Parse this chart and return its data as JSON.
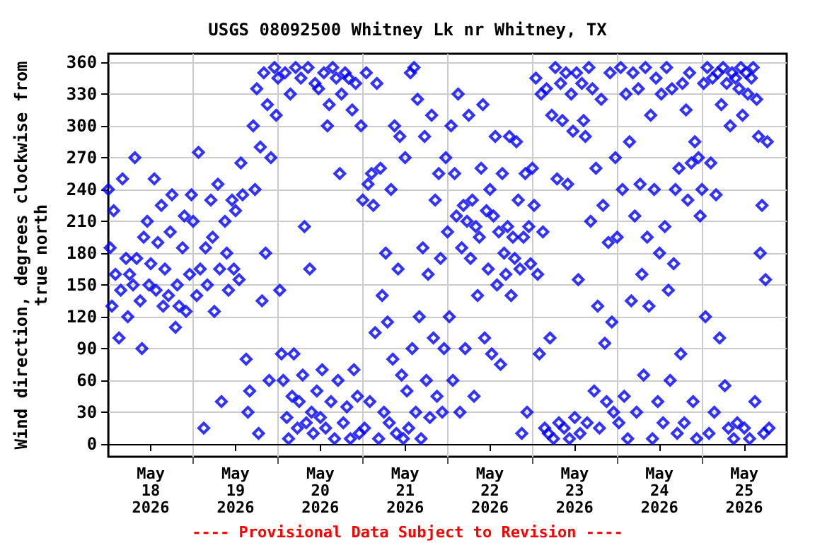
{
  "chart_data": {
    "type": "scatter",
    "title": "USGS 08092500 Whitney Lk nr Whitney, TX",
    "ylabel": "Wind direction, degrees clockwise from\ntrue north",
    "annotations": [
      "---- Provisional Data Subject to Revision ----"
    ],
    "marker": "diamond",
    "grid": true,
    "xlim": [
      "2026-05-18T00:00",
      "2026-05-26T00:00"
    ],
    "xticks": [
      {
        "value": "2026-05-18T12:00",
        "label": "May\n18\n2026"
      },
      {
        "value": "2026-05-19T12:00",
        "label": "May\n19\n2026"
      },
      {
        "value": "2026-05-20T12:00",
        "label": "May\n20\n2026"
      },
      {
        "value": "2026-05-21T12:00",
        "label": "May\n21\n2026"
      },
      {
        "value": "2026-05-22T12:00",
        "label": "May\n22\n2026"
      },
      {
        "value": "2026-05-23T12:00",
        "label": "May\n23\n2026"
      },
      {
        "value": "2026-05-24T12:00",
        "label": "May\n24\n2026"
      },
      {
        "value": "2026-05-25T12:00",
        "label": "May\n25\n2026"
      },
      {
        "value": "2026-05-19T00:00",
        "label": null
      },
      {
        "value": "2026-05-20T00:00",
        "label": null
      },
      {
        "value": "2026-05-21T00:00",
        "label": null
      },
      {
        "value": "2026-05-22T00:00",
        "label": null
      },
      {
        "value": "2026-05-23T00:00",
        "label": null
      },
      {
        "value": "2026-05-24T00:00",
        "label": null
      },
      {
        "value": "2026-05-25T00:00",
        "label": null
      }
    ],
    "ylim": [
      -12,
      368
    ],
    "yticks": [
      0,
      30,
      60,
      90,
      120,
      150,
      180,
      210,
      240,
      270,
      300,
      330,
      360
    ],
    "series": [
      {
        "color": "#0000ff",
        "x": [
          "2026-05-18T00:00",
          "2026-05-18T00:30",
          "2026-05-18T01:00",
          "2026-05-18T01:30",
          "2026-05-18T02:00",
          "2026-05-18T03:00",
          "2026-05-18T03:30",
          "2026-05-18T04:00",
          "2026-05-18T05:00",
          "2026-05-18T05:30",
          "2026-05-18T06:00",
          "2026-05-18T07:00",
          "2026-05-18T07:30",
          "2026-05-18T08:00",
          "2026-05-18T09:00",
          "2026-05-18T09:30",
          "2026-05-18T10:00",
          "2026-05-18T11:00",
          "2026-05-18T11:30",
          "2026-05-18T12:00",
          "2026-05-18T13:00",
          "2026-05-18T13:30",
          "2026-05-18T14:00",
          "2026-05-18T15:00",
          "2026-05-18T15:30",
          "2026-05-18T16:00",
          "2026-05-18T17:00",
          "2026-05-18T17:30",
          "2026-05-18T18:00",
          "2026-05-18T19:00",
          "2026-05-18T19:30",
          "2026-05-18T20:00",
          "2026-05-18T21:00",
          "2026-05-18T21:30",
          "2026-05-18T22:00",
          "2026-05-18T23:00",
          "2026-05-18T23:30",
          "2026-05-19T00:00",
          "2026-05-19T01:00",
          "2026-05-19T01:30",
          "2026-05-19T02:00",
          "2026-05-19T03:00",
          "2026-05-19T03:30",
          "2026-05-19T04:00",
          "2026-05-19T05:00",
          "2026-05-19T05:30",
          "2026-05-19T06:00",
          "2026-05-19T07:00",
          "2026-05-19T07:30",
          "2026-05-19T08:00",
          "2026-05-19T09:00",
          "2026-05-19T09:30",
          "2026-05-19T10:00",
          "2026-05-19T11:00",
          "2026-05-19T11:30",
          "2026-05-19T12:00",
          "2026-05-19T13:00",
          "2026-05-19T13:30",
          "2026-05-19T14:00",
          "2026-05-19T15:00",
          "2026-05-19T15:30",
          "2026-05-19T16:00",
          "2026-05-19T17:00",
          "2026-05-19T17:30",
          "2026-05-19T18:00",
          "2026-05-19T18:30",
          "2026-05-19T19:00",
          "2026-05-19T19:30",
          "2026-05-19T20:00",
          "2026-05-19T20:30",
          "2026-05-19T21:00",
          "2026-05-19T21:30",
          "2026-05-19T22:00",
          "2026-05-19T23:00",
          "2026-05-19T23:30",
          "2026-05-20T00:00",
          "2026-05-20T00:30",
          "2026-05-20T01:00",
          "2026-05-20T01:30",
          "2026-05-20T02:00",
          "2026-05-20T02:30",
          "2026-05-20T03:00",
          "2026-05-20T03:30",
          "2026-05-20T04:00",
          "2026-05-20T04:30",
          "2026-05-20T05:00",
          "2026-05-20T05:30",
          "2026-05-20T06:00",
          "2026-05-20T06:30",
          "2026-05-20T07:00",
          "2026-05-20T07:30",
          "2026-05-20T08:00",
          "2026-05-20T08:30",
          "2026-05-20T09:00",
          "2026-05-20T09:30",
          "2026-05-20T10:00",
          "2026-05-20T10:30",
          "2026-05-20T11:00",
          "2026-05-20T11:30",
          "2026-05-20T12:00",
          "2026-05-20T12:30",
          "2026-05-20T13:00",
          "2026-05-20T13:30",
          "2026-05-20T14:00",
          "2026-05-20T14:30",
          "2026-05-20T15:00",
          "2026-05-20T15:30",
          "2026-05-20T16:00",
          "2026-05-20T16:30",
          "2026-05-20T17:00",
          "2026-05-20T17:30",
          "2026-05-20T18:00",
          "2026-05-20T18:30",
          "2026-05-20T19:00",
          "2026-05-20T19:30",
          "2026-05-20T20:00",
          "2026-05-20T20:30",
          "2026-05-20T21:00",
          "2026-05-20T21:30",
          "2026-05-20T22:00",
          "2026-05-20T22:30",
          "2026-05-20T23:00",
          "2026-05-20T23:30",
          "2026-05-21T00:00",
          "2026-05-21T00:30",
          "2026-05-21T01:00",
          "2026-05-21T01:30",
          "2026-05-21T02:00",
          "2026-05-21T02:30",
          "2026-05-21T03:00",
          "2026-05-21T03:30",
          "2026-05-21T04:00",
          "2026-05-21T04:30",
          "2026-05-21T05:00",
          "2026-05-21T05:30",
          "2026-05-21T06:00",
          "2026-05-21T06:30",
          "2026-05-21T07:00",
          "2026-05-21T07:30",
          "2026-05-21T08:00",
          "2026-05-21T08:30",
          "2026-05-21T09:00",
          "2026-05-21T09:30",
          "2026-05-21T10:00",
          "2026-05-21T10:30",
          "2026-05-21T11:00",
          "2026-05-21T11:30",
          "2026-05-21T12:00",
          "2026-05-21T12:30",
          "2026-05-21T13:00",
          "2026-05-21T13:30",
          "2026-05-21T14:00",
          "2026-05-21T14:30",
          "2026-05-21T15:00",
          "2026-05-21T15:30",
          "2026-05-21T16:00",
          "2026-05-21T16:30",
          "2026-05-21T17:00",
          "2026-05-21T17:30",
          "2026-05-21T18:00",
          "2026-05-21T18:30",
          "2026-05-21T19:00",
          "2026-05-21T19:30",
          "2026-05-21T20:00",
          "2026-05-21T20:30",
          "2026-05-21T21:00",
          "2026-05-21T21:30",
          "2026-05-21T22:00",
          "2026-05-21T22:30",
          "2026-05-21T23:00",
          "2026-05-21T23:30",
          "2026-05-22T00:00",
          "2026-05-22T00:30",
          "2026-05-22T01:00",
          "2026-05-22T01:30",
          "2026-05-22T02:00",
          "2026-05-22T02:30",
          "2026-05-22T03:00",
          "2026-05-22T03:30",
          "2026-05-22T04:00",
          "2026-05-22T04:30",
          "2026-05-22T05:00",
          "2026-05-22T05:30",
          "2026-05-22T06:00",
          "2026-05-22T06:30",
          "2026-05-22T07:00",
          "2026-05-22T07:30",
          "2026-05-22T08:00",
          "2026-05-22T08:30",
          "2026-05-22T09:00",
          "2026-05-22T09:30",
          "2026-05-22T10:00",
          "2026-05-22T10:30",
          "2026-05-22T11:00",
          "2026-05-22T11:30",
          "2026-05-22T12:00",
          "2026-05-22T12:30",
          "2026-05-22T13:00",
          "2026-05-22T13:30",
          "2026-05-22T14:00",
          "2026-05-22T14:30",
          "2026-05-22T15:00",
          "2026-05-22T15:30",
          "2026-05-22T16:00",
          "2026-05-22T16:30",
          "2026-05-22T17:00",
          "2026-05-22T17:30",
          "2026-05-22T18:00",
          "2026-05-22T18:30",
          "2026-05-22T19:00",
          "2026-05-22T19:30",
          "2026-05-22T20:00",
          "2026-05-22T20:30",
          "2026-05-22T21:00",
          "2026-05-22T21:30",
          "2026-05-22T22:00",
          "2026-05-22T22:30",
          "2026-05-22T23:00",
          "2026-05-22T23:30",
          "2026-05-23T00:00",
          "2026-05-23T00:30",
          "2026-05-23T01:00",
          "2026-05-23T01:30",
          "2026-05-23T02:00",
          "2026-05-23T02:30",
          "2026-05-23T03:00",
          "2026-05-23T03:30",
          "2026-05-23T04:00",
          "2026-05-23T04:30",
          "2026-05-23T05:00",
          "2026-05-23T05:30",
          "2026-05-23T06:00",
          "2026-05-23T06:30",
          "2026-05-23T07:00",
          "2026-05-23T07:30",
          "2026-05-23T08:00",
          "2026-05-23T08:30",
          "2026-05-23T09:00",
          "2026-05-23T09:30",
          "2026-05-23T10:00",
          "2026-05-23T10:30",
          "2026-05-23T11:00",
          "2026-05-23T11:30",
          "2026-05-23T12:00",
          "2026-05-23T12:30",
          "2026-05-23T13:00",
          "2026-05-23T13:30",
          "2026-05-23T14:00",
          "2026-05-23T14:30",
          "2026-05-23T15:00",
          "2026-05-23T15:30",
          "2026-05-23T16:00",
          "2026-05-23T16:30",
          "2026-05-23T17:00",
          "2026-05-23T17:30",
          "2026-05-23T18:00",
          "2026-05-23T18:30",
          "2026-05-23T19:00",
          "2026-05-23T19:30",
          "2026-05-23T20:00",
          "2026-05-23T20:30",
          "2026-05-23T21:00",
          "2026-05-23T21:30",
          "2026-05-23T22:00",
          "2026-05-23T22:30",
          "2026-05-23T23:00",
          "2026-05-23T23:30",
          "2026-05-24T00:00",
          "2026-05-24T00:30",
          "2026-05-24T01:00",
          "2026-05-24T01:30",
          "2026-05-24T02:00",
          "2026-05-24T02:30",
          "2026-05-24T03:00",
          "2026-05-24T03:30",
          "2026-05-24T04:00",
          "2026-05-24T04:30",
          "2026-05-24T05:00",
          "2026-05-24T05:30",
          "2026-05-24T06:00",
          "2026-05-24T06:30",
          "2026-05-24T07:00",
          "2026-05-24T07:30",
          "2026-05-24T08:00",
          "2026-05-24T08:30",
          "2026-05-24T09:00",
          "2026-05-24T09:30",
          "2026-05-24T10:00",
          "2026-05-24T10:30",
          "2026-05-24T11:00",
          "2026-05-24T11:30",
          "2026-05-24T12:00",
          "2026-05-24T12:30",
          "2026-05-24T13:00",
          "2026-05-24T13:30",
          "2026-05-24T14:00",
          "2026-05-24T14:30",
          "2026-05-24T15:00",
          "2026-05-24T15:30",
          "2026-05-24T16:00",
          "2026-05-24T16:30",
          "2026-05-24T17:00",
          "2026-05-24T17:30",
          "2026-05-24T18:00",
          "2026-05-24T18:30",
          "2026-05-24T19:00",
          "2026-05-24T19:30",
          "2026-05-24T20:00",
          "2026-05-24T20:30",
          "2026-05-24T21:00",
          "2026-05-24T21:30",
          "2026-05-24T22:00",
          "2026-05-24T22:30",
          "2026-05-24T23:00",
          "2026-05-24T23:30",
          "2026-05-25T00:00",
          "2026-05-25T00:30",
          "2026-05-25T01:00",
          "2026-05-25T01:30",
          "2026-05-25T02:00",
          "2026-05-25T02:30",
          "2026-05-25T03:00",
          "2026-05-25T03:30",
          "2026-05-25T04:00",
          "2026-05-25T04:30",
          "2026-05-25T05:00",
          "2026-05-25T05:30",
          "2026-05-25T06:00",
          "2026-05-25T06:30",
          "2026-05-25T07:00",
          "2026-05-25T07:30",
          "2026-05-25T08:00",
          "2026-05-25T08:30",
          "2026-05-25T09:00",
          "2026-05-25T09:30",
          "2026-05-25T10:00",
          "2026-05-25T10:30",
          "2026-05-25T11:00",
          "2026-05-25T11:30",
          "2026-05-25T12:00",
          "2026-05-25T12:30",
          "2026-05-25T13:00",
          "2026-05-25T13:30",
          "2026-05-25T14:00",
          "2026-05-25T14:30",
          "2026-05-25T15:00",
          "2026-05-25T15:30",
          "2026-05-25T16:00",
          "2026-05-25T16:30",
          "2026-05-25T17:00",
          "2026-05-25T17:30",
          "2026-05-25T18:00",
          "2026-05-25T18:30",
          "2026-05-25T19:00"
        ],
        "values": [
          240,
          185,
          130,
          220,
          160,
          100,
          145,
          250,
          175,
          120,
          160,
          150,
          270,
          175,
          135,
          90,
          195,
          210,
          150,
          170,
          250,
          145,
          190,
          225,
          130,
          165,
          140,
          200,
          235,
          110,
          150,
          130,
          185,
          215,
          125,
          160,
          235,
          210,
          140,
          275,
          165,
          15,
          185,
          150,
          230,
          195,
          125,
          245,
          165,
          40,
          210,
          180,
          145,
          230,
          165,
          220,
          155,
          265,
          235,
          80,
          30,
          50,
          300,
          240,
          335,
          10,
          280,
          135,
          350,
          180,
          320,
          60,
          270,
          355,
          310,
          345,
          145,
          85,
          60,
          350,
          25,
          5,
          330,
          45,
          85,
          355,
          15,
          40,
          345,
          65,
          205,
          20,
          355,
          165,
          30,
          10,
          340,
          50,
          335,
          25,
          70,
          350,
          15,
          300,
          320,
          40,
          355,
          5,
          345,
          60,
          255,
          330,
          20,
          350,
          35,
          345,
          5,
          315,
          70,
          340,
          45,
          10,
          300,
          230,
          15,
          350,
          245,
          40,
          255,
          225,
          105,
          340,
          5,
          260,
          140,
          30,
          180,
          115,
          20,
          240,
          80,
          300,
          10,
          165,
          290,
          65,
          5,
          270,
          50,
          15,
          350,
          90,
          355,
          30,
          325,
          120,
          5,
          185,
          290,
          60,
          160,
          25,
          310,
          100,
          230,
          45,
          255,
          175,
          30,
          90,
          270,
          200,
          120,
          300,
          60,
          255,
          215,
          330,
          30,
          185,
          225,
          90,
          210,
          310,
          175,
          230,
          45,
          205,
          140,
          195,
          260,
          320,
          100,
          220,
          165,
          240,
          85,
          215,
          290,
          150,
          200,
          75,
          255,
          180,
          160,
          205,
          290,
          140,
          195,
          175,
          285,
          230,
          165,
          10,
          195,
          255,
          30,
          205,
          170,
          260,
          225,
          345,
          160,
          85,
          330,
          200,
          15,
          335,
          10,
          100,
          310,
          5,
          355,
          250,
          20,
          340,
          305,
          15,
          350,
          245,
          5,
          330,
          295,
          25,
          350,
          155,
          10,
          340,
          305,
          290,
          20,
          355,
          210,
          335,
          50,
          260,
          130,
          15,
          325,
          225,
          95,
          40,
          190,
          350,
          115,
          30,
          270,
          195,
          20,
          355,
          240,
          45,
          330,
          5,
          285,
          135,
          350,
          215,
          30,
          335,
          245,
          160,
          65,
          355,
          195,
          130,
          310,
          5,
          240,
          345,
          40,
          180,
          330,
          20,
          205,
          355,
          145,
          60,
          335,
          170,
          240,
          10,
          260,
          85,
          340,
          20,
          315,
          230,
          350,
          265,
          40,
          285,
          5,
          270,
          215,
          240,
          340,
          120,
          355,
          10,
          265,
          345,
          30,
          235,
          350,
          100,
          320,
          355,
          55,
          340,
          15,
          300,
          350,
          5,
          345,
          20,
          335,
          355,
          310,
          15,
          350,
          330,
          5,
          345,
          355,
          40,
          325,
          290,
          180,
          225,
          10,
          155,
          285,
          15
        ]
      }
    ]
  }
}
